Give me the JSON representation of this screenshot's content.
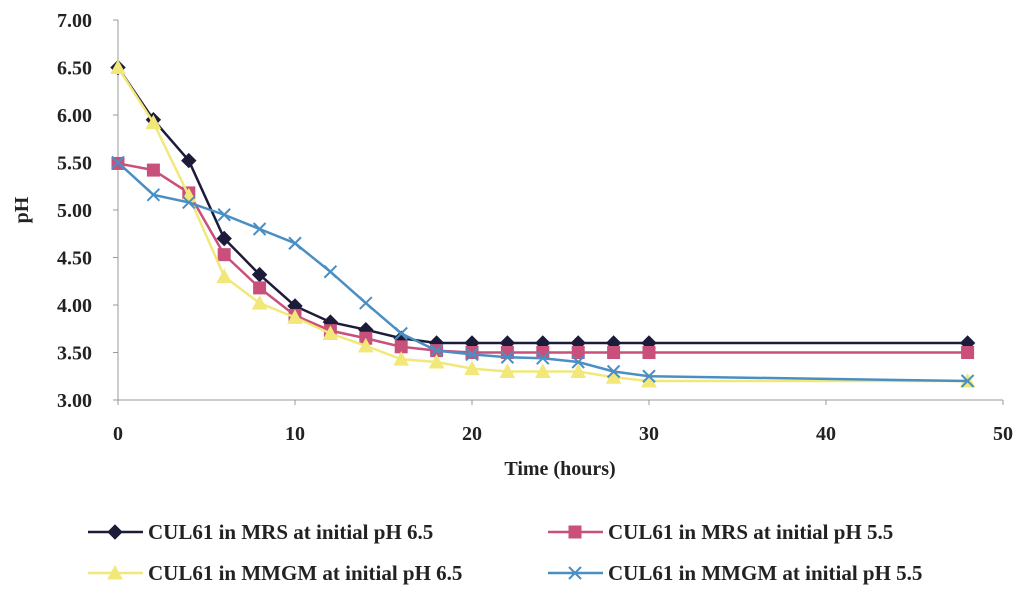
{
  "chart_data": {
    "type": "line",
    "xlabel": "Time (hours)",
    "ylabel": "pH",
    "xlim": [
      0,
      50
    ],
    "ylim": [
      3.0,
      7.0
    ],
    "xticks": [
      "0",
      "10",
      "20",
      "30",
      "40",
      "50"
    ],
    "yticks": [
      "3.00",
      "3.50",
      "4.00",
      "4.50",
      "5.00",
      "5.50",
      "6.00",
      "6.50",
      "7.00"
    ],
    "grid": false,
    "legend_position": "bottom",
    "series": [
      {
        "name": "CUL61 in MRS at initial pH 6.5",
        "color": "#1c1c3a",
        "marker": "diamond",
        "x": [
          0,
          2,
          4,
          6,
          8,
          10,
          12,
          14,
          16,
          18,
          20,
          22,
          24,
          26,
          28,
          30,
          48
        ],
        "y": [
          6.5,
          5.95,
          5.52,
          4.7,
          4.32,
          3.99,
          3.82,
          3.74,
          3.65,
          3.6,
          3.6,
          3.6,
          3.6,
          3.6,
          3.6,
          3.6,
          3.6
        ]
      },
      {
        "name": "CUL61 in MRS at initial pH 5.5",
        "color": "#c8507a",
        "marker": "square",
        "x": [
          0,
          2,
          4,
          6,
          8,
          10,
          12,
          14,
          16,
          18,
          20,
          22,
          24,
          26,
          28,
          30,
          48
        ],
        "y": [
          5.49,
          5.42,
          5.18,
          4.53,
          4.18,
          3.89,
          3.73,
          3.65,
          3.56,
          3.52,
          3.5,
          3.5,
          3.5,
          3.5,
          3.5,
          3.5,
          3.5
        ]
      },
      {
        "name": "CUL61 in MMGM at initial pH 6.5",
        "color": "#f2e87a",
        "marker": "triangle",
        "x": [
          0,
          2,
          4,
          6,
          8,
          10,
          12,
          14,
          16,
          18,
          20,
          22,
          24,
          26,
          28,
          30,
          48
        ],
        "y": [
          6.5,
          5.92,
          5.15,
          4.3,
          4.02,
          3.87,
          3.7,
          3.57,
          3.43,
          3.4,
          3.33,
          3.3,
          3.3,
          3.3,
          3.24,
          3.2,
          3.2
        ]
      },
      {
        "name": "CUL61 in MMGM at initial pH 5.5",
        "color": "#4a8fc4",
        "marker": "x",
        "x": [
          0,
          2,
          4,
          6,
          8,
          10,
          12,
          14,
          16,
          18,
          20,
          22,
          24,
          26,
          28,
          30,
          48
        ],
        "y": [
          5.5,
          5.16,
          5.08,
          4.95,
          4.8,
          4.65,
          4.35,
          4.02,
          3.7,
          3.52,
          3.48,
          3.45,
          3.44,
          3.4,
          3.3,
          3.25,
          3.2
        ]
      }
    ]
  }
}
